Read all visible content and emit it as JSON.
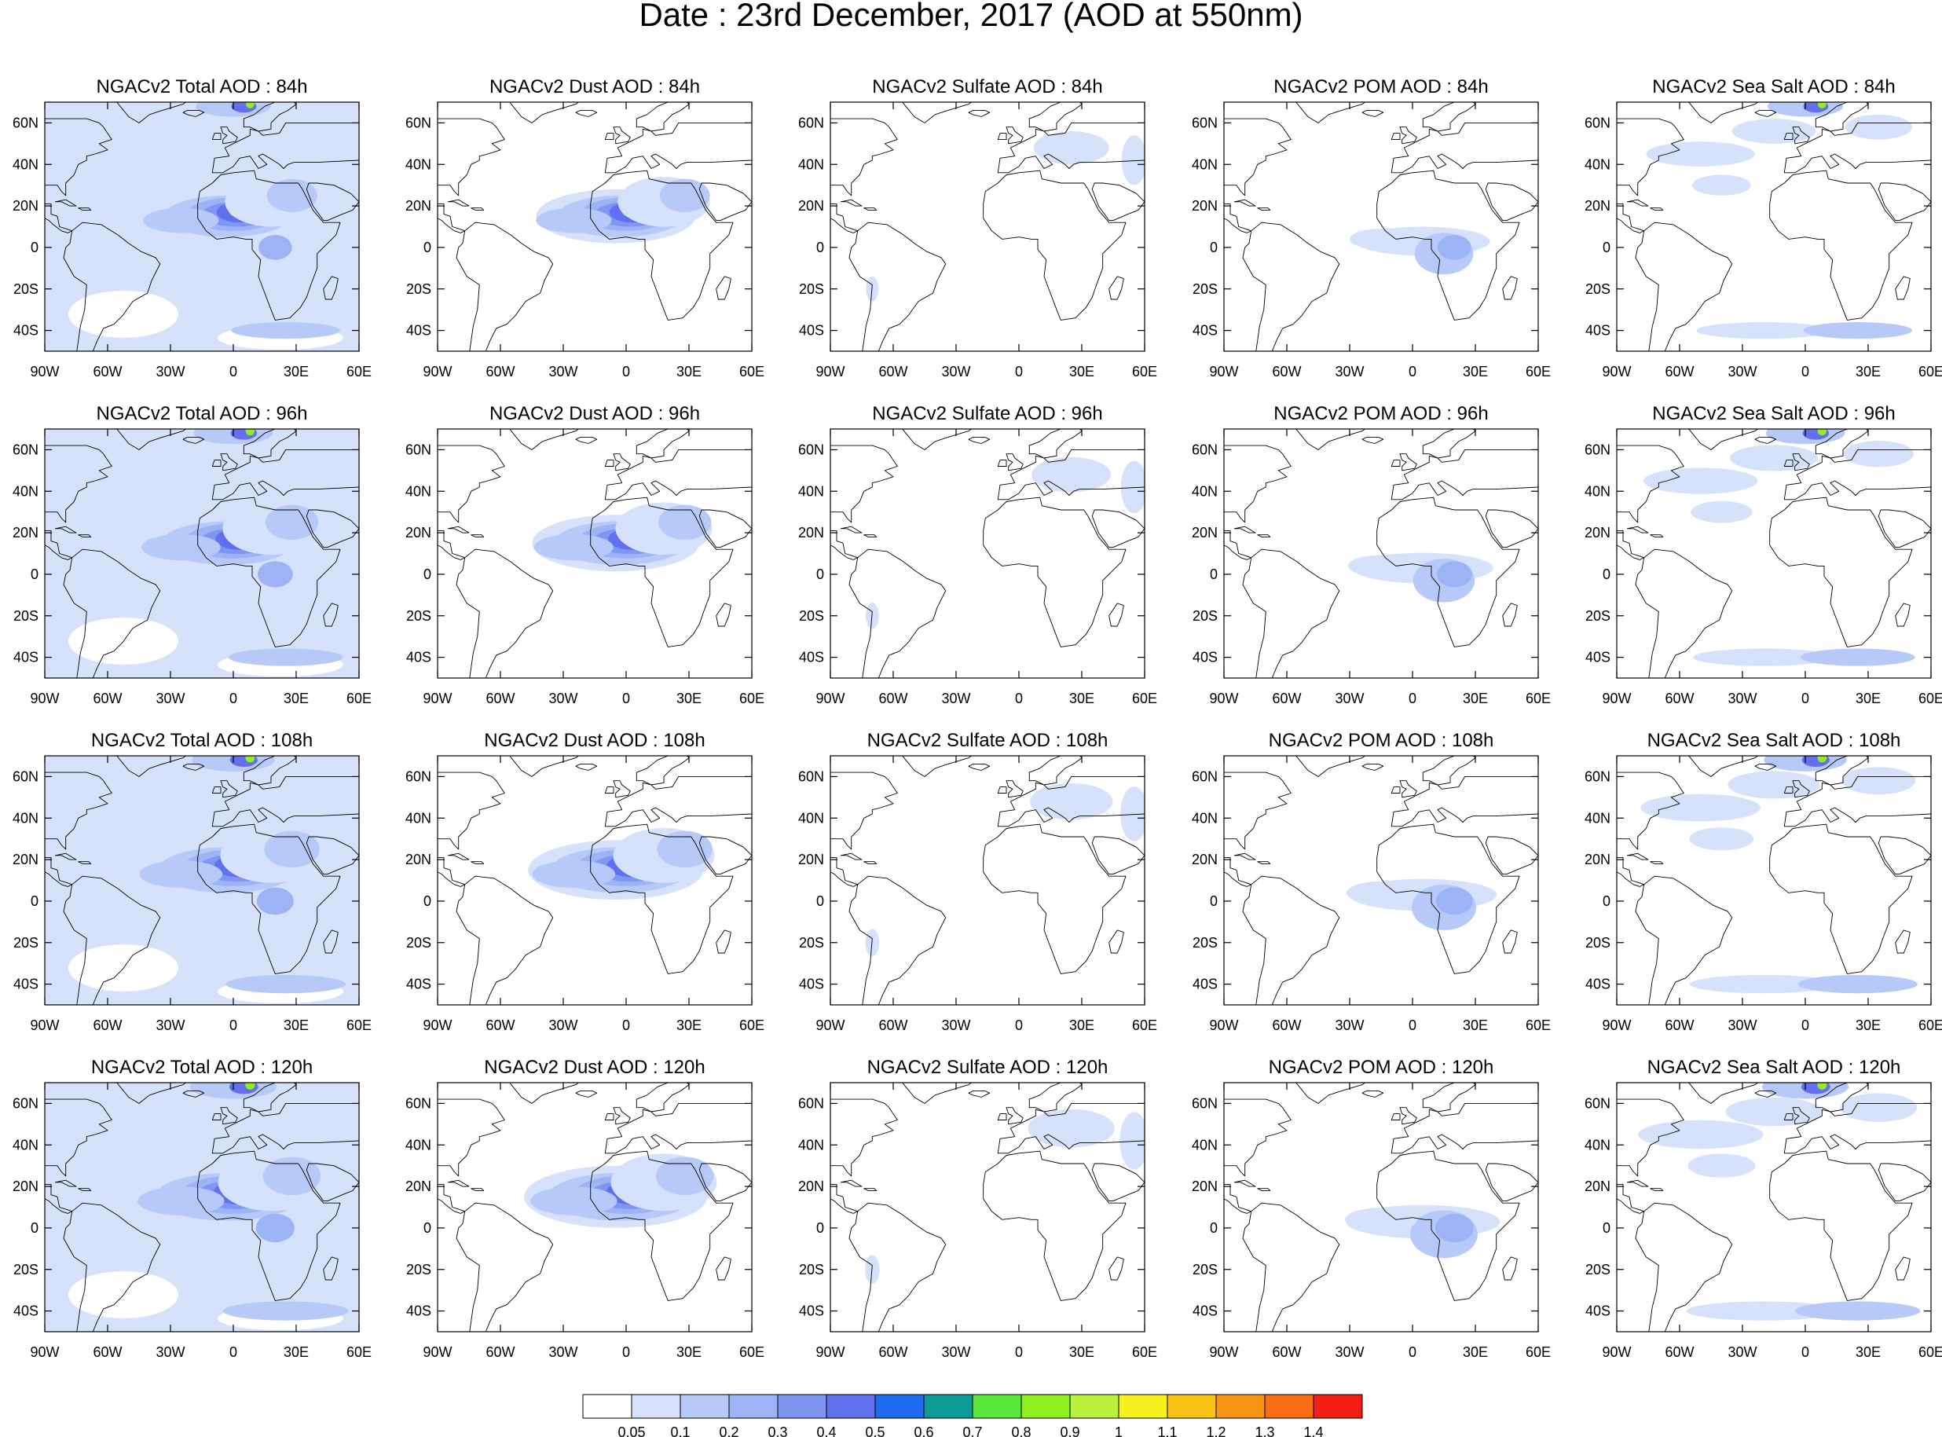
{
  "title": "Date : 23rd December, 2017 (AOD at 550nm)",
  "panels": [
    [
      "NGACv2 Total AOD : 84h",
      "NGACv2 Dust AOD : 84h",
      "NGACv2 Sulfate AOD : 84h",
      "NGACv2 POM AOD : 84h",
      "NGACv2 Sea Salt AOD : 84h"
    ],
    [
      "NGACv2 Total AOD : 96h",
      "NGACv2 Dust AOD : 96h",
      "NGACv2 Sulfate AOD : 96h",
      "NGACv2 POM AOD : 96h",
      "NGACv2 Sea Salt AOD : 96h"
    ],
    [
      "NGACv2 Total AOD : 108h",
      "NGACv2 Dust AOD : 108h",
      "NGACv2 Sulfate AOD : 108h",
      "NGACv2 POM AOD : 108h",
      "NGACv2 Sea Salt AOD : 108h"
    ],
    [
      "NGACv2 Total AOD : 120h",
      "NGACv2 Dust AOD : 120h",
      "NGACv2 Sulfate AOD : 120h",
      "NGACv2 POM AOD : 120h",
      "NGACv2 Sea Salt  AOD : 120h"
    ]
  ],
  "axes": {
    "lon_ticks": [
      "90W",
      "60W",
      "30W",
      "0",
      "30E",
      "60E"
    ],
    "lat_ticks": [
      "60N",
      "40N",
      "20N",
      "0",
      "20S",
      "40S"
    ],
    "lon_range": [
      -90,
      60
    ],
    "lat_range": [
      -50,
      70
    ]
  },
  "colorbar": {
    "colors": [
      "#ffffff",
      "#d6e2fb",
      "#b6c9f8",
      "#9cb4f6",
      "#7f97f3",
      "#6070ee",
      "#1d6cf0",
      "#0d9b96",
      "#59e73a",
      "#90f01f",
      "#b9f23a",
      "#f7f21f",
      "#fac213",
      "#f99313",
      "#f86d16",
      "#f41e14"
    ],
    "labels": [
      "0.05",
      "0.1",
      "0.2",
      "0.3",
      "0.4",
      "0.5",
      "0.6",
      "0.7",
      "0.8",
      "0.9",
      "1",
      "1.1",
      "1.2",
      "1.3",
      "1.4"
    ]
  }
}
